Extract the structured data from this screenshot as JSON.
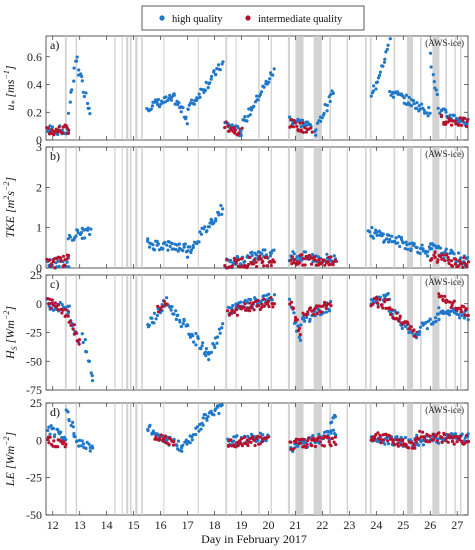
{
  "colors": {
    "high": "#1f77c8",
    "intermediate": "#b5122e",
    "gap": "#c8c8c8"
  },
  "legend": {
    "high": "high quality",
    "intermediate": "intermediate quality"
  },
  "xlabel": "Day in February 2017",
  "xticks": [
    12,
    13,
    14,
    15,
    16,
    17,
    18,
    19,
    20,
    21,
    22,
    23,
    24,
    25,
    26,
    27
  ],
  "xlim": [
    11.75,
    27.4
  ],
  "station_tag": "(AWS-ice)",
  "chart_data": [
    {
      "type": "scatter",
      "panel": "a)",
      "ylabel_main": "u",
      "ylabel_sub": "*",
      "ylabel_unit_pre": "[ms",
      "ylabel_unit_sup": "−1",
      "ylabel_unit_post": "]",
      "ylim": [
        0,
        0.75
      ],
      "yticks": [
        0,
        0.2,
        0.4,
        0.6
      ],
      "ytick_labels": [
        "0",
        "0.2",
        "0.4",
        "0.6"
      ],
      "segments": [
        {
          "series": "high",
          "x": [
            11.8,
            12.6
          ],
          "y": [
            0.08,
            0.06
          ]
        },
        {
          "series": "intermediate",
          "x": [
            11.8,
            12.6
          ],
          "y": [
            0.06,
            0.08
          ]
        },
        {
          "series": "high",
          "x": [
            12.6,
            12.9
          ],
          "y": [
            0.2,
            0.6
          ]
        },
        {
          "series": "high",
          "x": [
            12.9,
            13.4
          ],
          "y": [
            0.55,
            0.2
          ]
        },
        {
          "series": "high",
          "x": [
            15.5,
            16.5
          ],
          "y": [
            0.24,
            0.3
          ]
        },
        {
          "series": "high",
          "x": [
            16.5,
            17.0
          ],
          "y": [
            0.3,
            0.15
          ]
        },
        {
          "series": "high",
          "x": [
            17.0,
            18.3
          ],
          "y": [
            0.22,
            0.55
          ]
        },
        {
          "series": "high",
          "x": [
            18.4,
            19.0
          ],
          "y": [
            0.12,
            0.05
          ]
        },
        {
          "series": "intermediate",
          "x": [
            18.4,
            19.0
          ],
          "y": [
            0.1,
            0.06
          ]
        },
        {
          "series": "high",
          "x": [
            19.0,
            20.2
          ],
          "y": [
            0.1,
            0.5
          ]
        },
        {
          "series": "high",
          "x": [
            20.8,
            21.6
          ],
          "y": [
            0.15,
            0.1
          ]
        },
        {
          "series": "intermediate",
          "x": [
            20.8,
            21.6
          ],
          "y": [
            0.12,
            0.07
          ]
        },
        {
          "series": "high",
          "x": [
            21.7,
            22.4
          ],
          "y": [
            0.05,
            0.35
          ]
        },
        {
          "series": "high",
          "x": [
            23.8,
            24.5
          ],
          "y": [
            0.3,
            0.7
          ]
        },
        {
          "series": "high",
          "x": [
            24.5,
            26.0
          ],
          "y": [
            0.35,
            0.2
          ]
        },
        {
          "series": "high",
          "x": [
            26.0,
            26.4
          ],
          "y": [
            0.6,
            0.15
          ]
        },
        {
          "series": "high",
          "x": [
            26.4,
            27.4
          ],
          "y": [
            0.2,
            0.12
          ]
        },
        {
          "series": "intermediate",
          "x": [
            26.4,
            27.4
          ],
          "y": [
            0.15,
            0.12
          ]
        }
      ]
    },
    {
      "type": "scatter",
      "panel": "b)",
      "ylabel_main": "TKE",
      "ylabel_sub": "",
      "ylabel_unit_pre": "[m",
      "ylabel_unit_sup": "2",
      "ylabel_unit_post": "s",
      "ylabel_unit_sup2": "−2",
      "ylabel_unit_end": "]",
      "ylim": [
        0,
        3
      ],
      "yticks": [
        0,
        1,
        2,
        3
      ],
      "ytick_labels": [
        "0",
        "1",
        "2",
        "3"
      ],
      "segments": [
        {
          "series": "high",
          "x": [
            11.8,
            12.6
          ],
          "y": [
            0.1,
            0.15
          ]
        },
        {
          "series": "intermediate",
          "x": [
            11.8,
            12.6
          ],
          "y": [
            0.1,
            0.2
          ]
        },
        {
          "series": "high",
          "x": [
            12.6,
            13.4
          ],
          "y": [
            0.8,
            0.9
          ]
        },
        {
          "series": "high",
          "x": [
            15.5,
            17.0
          ],
          "y": [
            0.6,
            0.5
          ]
        },
        {
          "series": "high",
          "x": [
            17.0,
            18.3
          ],
          "y": [
            0.4,
            1.5
          ]
        },
        {
          "series": "high",
          "x": [
            18.4,
            20.2
          ],
          "y": [
            0.1,
            0.4
          ]
        },
        {
          "series": "intermediate",
          "x": [
            18.4,
            20.2
          ],
          "y": [
            0.1,
            0.2
          ]
        },
        {
          "series": "high",
          "x": [
            20.8,
            22.5
          ],
          "y": [
            0.3,
            0.2
          ]
        },
        {
          "series": "intermediate",
          "x": [
            20.8,
            22.5
          ],
          "y": [
            0.2,
            0.2
          ]
        },
        {
          "series": "high",
          "x": [
            23.7,
            26.0
          ],
          "y": [
            0.9,
            0.4
          ]
        },
        {
          "series": "high",
          "x": [
            26.0,
            27.4
          ],
          "y": [
            0.5,
            0.15
          ]
        },
        {
          "series": "intermediate",
          "x": [
            26.0,
            27.4
          ],
          "y": [
            0.3,
            0.1
          ]
        }
      ]
    },
    {
      "type": "scatter",
      "panel": "c)",
      "ylabel_main": "H",
      "ylabel_sub": "S",
      "ylabel_unit_pre": "[Wm",
      "ylabel_unit_sup": "−2",
      "ylabel_unit_post": "]",
      "ylim": [
        -75,
        25
      ],
      "yticks": [
        -75,
        -50,
        -25,
        0,
        25
      ],
      "ytick_labels": [
        "-75",
        "-50",
        "-25",
        "0",
        "25"
      ],
      "segments": [
        {
          "series": "high",
          "x": [
            11.8,
            12.6
          ],
          "y": [
            0,
            -5
          ]
        },
        {
          "series": "intermediate",
          "x": [
            11.8,
            12.6
          ],
          "y": [
            2,
            -8
          ]
        },
        {
          "series": "high",
          "x": [
            12.6,
            13.0
          ],
          "y": [
            -10,
            -35
          ]
        },
        {
          "series": "intermediate",
          "x": [
            12.6,
            13.0
          ],
          "y": [
            -12,
            -33
          ]
        },
        {
          "series": "high",
          "x": [
            13.1,
            13.5
          ],
          "y": [
            -25,
            -65
          ]
        },
        {
          "series": "high",
          "x": [
            15.5,
            16.2
          ],
          "y": [
            -20,
            2
          ]
        },
        {
          "series": "intermediate",
          "x": [
            15.9,
            16.3
          ],
          "y": [
            -5,
            0
          ]
        },
        {
          "series": "high",
          "x": [
            16.3,
            17.8
          ],
          "y": [
            -2,
            -45
          ]
        },
        {
          "series": "high",
          "x": [
            17.8,
            18.3
          ],
          "y": [
            -45,
            -20
          ]
        },
        {
          "series": "high",
          "x": [
            18.5,
            20.2
          ],
          "y": [
            -5,
            5
          ]
        },
        {
          "series": "intermediate",
          "x": [
            18.5,
            20.2
          ],
          "y": [
            -8,
            2
          ]
        },
        {
          "series": "high",
          "x": [
            20.8,
            21.2
          ],
          "y": [
            0,
            -30
          ]
        },
        {
          "series": "intermediate",
          "x": [
            20.8,
            21.2
          ],
          "y": [
            0,
            -25
          ]
        },
        {
          "series": "high",
          "x": [
            21.2,
            22.3
          ],
          "y": [
            -15,
            -2
          ]
        },
        {
          "series": "intermediate",
          "x": [
            21.3,
            22.3
          ],
          "y": [
            -10,
            0
          ]
        },
        {
          "series": "high",
          "x": [
            23.8,
            24.5
          ],
          "y": [
            0,
            5
          ]
        },
        {
          "series": "intermediate",
          "x": [
            23.8,
            24.5
          ],
          "y": [
            2,
            0
          ]
        },
        {
          "series": "high",
          "x": [
            24.5,
            25.5
          ],
          "y": [
            -5,
            -30
          ]
        },
        {
          "series": "intermediate",
          "x": [
            24.5,
            25.5
          ],
          "y": [
            -5,
            -28
          ]
        },
        {
          "series": "high",
          "x": [
            25.5,
            26.3
          ],
          "y": [
            -25,
            -10
          ]
        },
        {
          "series": "high",
          "x": [
            26.3,
            27.4
          ],
          "y": [
            -5,
            -10
          ]
        },
        {
          "series": "intermediate",
          "x": [
            26.3,
            27.4
          ],
          "y": [
            5,
            -8
          ]
        }
      ]
    },
    {
      "type": "scatter",
      "panel": "d)",
      "ylabel_main": "LE",
      "ylabel_sub": "",
      "ylabel_unit_pre": "[Wm",
      "ylabel_unit_sup": "−2",
      "ylabel_unit_post": "]",
      "ylim": [
        -50,
        25
      ],
      "yticks": [
        -50,
        -25,
        0,
        25
      ],
      "ytick_labels": [
        "-50",
        "-25",
        "0",
        "25"
      ],
      "segments": [
        {
          "series": "high",
          "x": [
            11.8,
            12.5
          ],
          "y": [
            8,
            0
          ]
        },
        {
          "series": "intermediate",
          "x": [
            11.8,
            12.5
          ],
          "y": [
            0,
            -3
          ]
        },
        {
          "series": "high",
          "x": [
            12.5,
            12.8
          ],
          "y": [
            20,
            5
          ]
        },
        {
          "series": "high",
          "x": [
            12.8,
            13.5
          ],
          "y": [
            0,
            -5
          ]
        },
        {
          "series": "high",
          "x": [
            15.5,
            16.8
          ],
          "y": [
            8,
            -5
          ]
        },
        {
          "series": "intermediate",
          "x": [
            15.8,
            16.5
          ],
          "y": [
            2,
            0
          ]
        },
        {
          "series": "high",
          "x": [
            16.8,
            17.6
          ],
          "y": [
            -5,
            12
          ]
        },
        {
          "series": "high",
          "x": [
            17.6,
            18.3
          ],
          "y": [
            15,
            22
          ]
        },
        {
          "series": "high",
          "x": [
            18.5,
            20.0
          ],
          "y": [
            0,
            2
          ]
        },
        {
          "series": "intermediate",
          "x": [
            18.5,
            20.0
          ],
          "y": [
            -2,
            0
          ]
        },
        {
          "series": "high",
          "x": [
            20.8,
            22.5
          ],
          "y": [
            -5,
            5
          ]
        },
        {
          "series": "intermediate",
          "x": [
            20.8,
            22.5
          ],
          "y": [
            -3,
            0
          ]
        },
        {
          "series": "high",
          "x": [
            22.3,
            22.5
          ],
          "y": [
            10,
            16
          ]
        },
        {
          "series": "high",
          "x": [
            23.8,
            25.5
          ],
          "y": [
            2,
            -2
          ]
        },
        {
          "series": "intermediate",
          "x": [
            23.8,
            25.5
          ],
          "y": [
            3,
            -3
          ]
        },
        {
          "series": "high",
          "x": [
            25.5,
            27.4
          ],
          "y": [
            0,
            2
          ]
        },
        {
          "series": "intermediate",
          "x": [
            25.5,
            27.4
          ],
          "y": [
            3,
            0
          ]
        }
      ]
    }
  ],
  "gaps": [
    [
      12.45,
      12.52
    ],
    [
      12.85,
      12.9
    ],
    [
      14.28,
      14.33
    ],
    [
      14.56,
      14.6
    ],
    [
      14.72,
      14.8
    ],
    [
      14.86,
      14.92
    ],
    [
      15.06,
      15.14
    ],
    [
      15.28,
      15.34
    ],
    [
      16.1,
      16.14
    ],
    [
      17.38,
      17.42
    ],
    [
      18.4,
      18.47
    ],
    [
      18.78,
      18.82
    ],
    [
      19.62,
      19.68
    ],
    [
      20.08,
      20.13
    ],
    [
      20.72,
      20.8
    ],
    [
      21.0,
      21.3
    ],
    [
      21.68,
      21.98
    ],
    [
      22.26,
      22.32
    ],
    [
      22.9,
      22.95
    ],
    [
      23.58,
      23.64
    ],
    [
      23.76,
      23.82
    ],
    [
      24.64,
      24.7
    ],
    [
      25.14,
      25.36
    ],
    [
      25.62,
      25.68
    ],
    [
      26.08,
      26.34
    ],
    [
      26.56,
      26.62
    ],
    [
      26.9,
      26.95
    ],
    [
      27.1,
      27.16
    ]
  ]
}
